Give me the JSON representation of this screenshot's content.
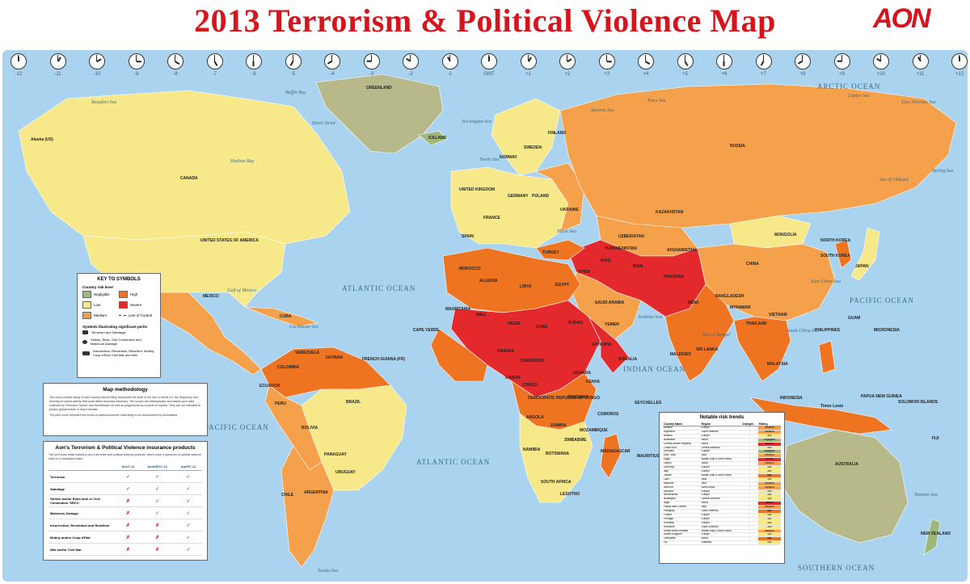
{
  "title": "2013 Terrorism & Political Violence Map",
  "logo": "AON",
  "colors": {
    "negligible": "#9fb97a",
    "low": "#f7e98a",
    "medium": "#f5a04a",
    "high": "#ee7422",
    "severe": "#e3292b",
    "ocean": "#a9d3ee",
    "greenland": "#b7b98a"
  },
  "time_zones": [
    "-12",
    "-11",
    "-10",
    "-9",
    "-8",
    "-7",
    "-6",
    "-5",
    "-4",
    "-3",
    "-2",
    "-1",
    "GMT",
    "+1",
    "+2",
    "+3",
    "+4",
    "+5",
    "+6",
    "+7",
    "+8",
    "+9",
    "+10",
    "+11",
    "+12"
  ],
  "oceans": {
    "arctic": "ARCTIC OCEAN",
    "atlantic_n": "ATLANTIC OCEAN",
    "atlantic_s": "ATLANTIC OCEAN",
    "pacific_w": "PACIFIC OCEAN",
    "pacific_e": "PACIFIC OCEAN",
    "indian": "INDIAN OCEAN",
    "southern": "SOUTHERN OCEAN"
  },
  "seas": {
    "beaufort": "Beaufort Sea",
    "baffin": "Baffin Bay",
    "davis": "Davis Strait",
    "hudson": "Hudson Bay",
    "mexico": "Gulf of Mexico",
    "caribbean": "Caribbean Sea",
    "norwegian": "Norwegian Sea",
    "north": "North Sea",
    "barents": "Barents Sea",
    "kara": "Kara Sea",
    "laptev": "Laptev Sea",
    "east_siberian": "East Siberian Sea",
    "okhotsk": "Sea of Okhotsk",
    "bering": "Bering Sea",
    "black": "Black Sea",
    "arabian": "Arabian Sea",
    "bengal": "Bay of Bengal",
    "east_china": "East China Sea",
    "south_china": "South China Sea",
    "tasman": "Tasman Sea",
    "scotia": "Scotia Sea"
  },
  "countries": {
    "greenland": "GREENLAND",
    "canada": "CANADA",
    "usa": "UNITED STATES OF AMERICA",
    "mexico": "MEXICO",
    "brazil": "BRAZIL",
    "argentina": "ARGENTINA",
    "russia": "RUSSIA",
    "china": "CHINA",
    "india": "INDIA",
    "mongolia": "MONGOLIA",
    "kazakhstan": "KAZAKHSTAN",
    "australia": "AUSTRALIA",
    "saudi": "SAUDI ARABIA",
    "algeria": "ALGERIA",
    "libya": "LIBYA",
    "egypt": "EGYPT",
    "sudan": "SUDAN",
    "mali": "MALI",
    "niger": "NIGER",
    "chad": "CHAD",
    "drc": "DEMOCRATIC REPUBLIC OF CONGO",
    "angola": "ANGOLA",
    "south_africa": "SOUTH AFRICA",
    "madagascar": "MADAGASCAR",
    "indonesia": "INDONESIA",
    "iran": "IRAN",
    "peru": "PERU",
    "bolivia": "BOLIVIA",
    "colombia": "COLOMBIA",
    "venezuela": "VENEZUELA",
    "chile": "CHILE",
    "french_guiana": "FRENCH GUIANA (FR)",
    "japan": "JAPAN",
    "philippines": "PHILIPPINES",
    "micronesia": "MICRONESIA",
    "guam": "GUAM",
    "alaska": "Alaska (US)",
    "iceland": "ICELAND",
    "norway": "NORWAY",
    "sweden": "SWEDEN",
    "finland": "FINLAND",
    "uk": "UNITED KINGDOM",
    "france": "FRANCE",
    "spain": "SPAIN",
    "germany": "GERMANY",
    "poland": "POLAND",
    "ukraine": "UKRAINE",
    "turkey": "TURKEY",
    "pakistan": "PAKISTAN",
    "afghanistan": "AFGHANISTAN",
    "yemen": "YEMEN",
    "somalia": "SOMALIA",
    "ethiopia": "ETHIOPIA",
    "kenya": "KENYA",
    "tanzania": "TANZANIA",
    "zambia": "ZAMBIA",
    "mozambique": "MOZAMBIQUE",
    "namibia": "NAMIBIA",
    "botswana": "BOTSWANA",
    "nigeria": "NIGERIA",
    "mauritania": "MAURITANIA",
    "morocco": "MOROCCO",
    "thailand": "THAILAND",
    "vietnam": "VIETNAM",
    "malaysia": "MALAYSIA",
    "png": "PAPUA NEW GUINEA",
    "new_zealand": "NEW ZEALAND",
    "north_korea": "NORTH KOREA",
    "south_korea": "SOUTH KOREA",
    "myanmar": "MYANMAR",
    "bangladesh": "BANGLADESH",
    "sri_lanka": "SRI LANKA",
    "uzbekistan": "UZBEKISTAN",
    "turkmenistan": "TURKMENISTAN",
    "iraq": "IRAQ",
    "syria": "SYRIA",
    "cape_verde": "CAPE VERDE",
    "cuba": "CUBA",
    "paraguay": "PARAGUAY",
    "uruguay": "URUGUAY",
    "ecuador": "ECUADOR",
    "guyana": "GUYANA",
    "cameroon": "CAMEROON",
    "gabon": "GABON",
    "congo": "CONGO",
    "uganda": "UGANDA",
    "comoros": "COMOROS",
    "maldives": "MALDIVES",
    "seychelles": "SEYCHELLES",
    "mauritius": "MAURITIUS",
    "lesotho": "LESOTHO",
    "zimbabwe": "ZIMBABWE",
    "east_timor": "Timor Leste",
    "solomon": "SOLOMON ISLANDS",
    "fiji": "FIJI"
  },
  "key": {
    "title": "KEY TO SYMBOLS",
    "country_risk_label": "Country risk level",
    "levels": [
      "Negligible",
      "High",
      "Low",
      "Severe",
      "Medium",
      "Line of Control"
    ],
    "symbols_label": "Symbols illustrating significant perils",
    "symbols": [
      "Terrorism and Sabotage",
      "Strikes, Riots, Civil Commotion and Malicious Damage",
      "Insurrection, Revolution, Rebellion, Mutiny, Coup d'Etat, Civil War and War"
    ]
  },
  "methodology": {
    "title": "Map methodology",
    "text1": "The colour-coded rating of each country and territory represents the level of the risk or threat (i.e. the frequency and severity of violent activity that could affect business interests). The scores are retrospective and based upon data collected by Terrorism Tracker and WorldAware as well as judgements by a panel of experts. They are not intended to predict global events or future threats.",
    "text2": "The peril icons represent the forms of political violence most likely to be encountered by businesses."
  },
  "insurance": {
    "title": "Aon's Terrorism & Political Violence insurance products",
    "intro": "The peril icons relate closely to Aon's terrorism and political violence products, which cover a spectrum of political violence risks on a cumulative basis.",
    "columns": [
      "AonT 12",
      "AonSRCC 12",
      "AonPV 12"
    ],
    "rows": [
      {
        "label": "Terrorism",
        "marks": [
          "yes",
          "yes",
          "yes"
        ]
      },
      {
        "label": "Sabotage",
        "marks": [
          "yes",
          "yes",
          "yes"
        ]
      },
      {
        "label": "Strikes and/or Riots and/ or Civil Commotion 'SRCC'",
        "marks": [
          "no",
          "yes",
          "yes"
        ]
      },
      {
        "label": "Malicious Damage",
        "marks": [
          "no",
          "yes",
          "yes"
        ]
      },
      {
        "label": "Insurrection, Revolution and Rebellion",
        "marks": [
          "no",
          "no",
          "yes"
        ]
      },
      {
        "label": "Mutiny and/or Coup d'Etat",
        "marks": [
          "no",
          "no",
          "yes"
        ]
      },
      {
        "label": "War and/or Civil War",
        "marks": [
          "no",
          "no",
          "yes"
        ]
      }
    ]
  },
  "trends": {
    "title": "Notable risk trends",
    "headers": [
      "Country Name",
      "Region",
      "Changes",
      "Rating"
    ],
    "rows": [
      [
        "Albania",
        "Europe",
        "↑",
        "medium"
      ],
      [
        "Argentina",
        "South America",
        "↑",
        "medium"
      ],
      [
        "Belarus",
        "Europe",
        "↓",
        "low"
      ],
      [
        "Botswana",
        "Africa",
        "↓",
        "negligible"
      ],
      [
        "Central African Republic",
        "Africa",
        "↑",
        "severe"
      ],
      [
        "Costa Rica",
        "Central America",
        "↓",
        "low"
      ],
      [
        "Denmark",
        "Europe",
        "↓",
        "negligible"
      ],
      [
        "East Timor",
        "Asia",
        "↓",
        "medium"
      ],
      [
        "Egypt",
        "Middle East & North Africa",
        "↑",
        "severe"
      ],
      [
        "Gabon",
        "Africa",
        "↑",
        "medium"
      ],
      [
        "Germany",
        "Europe",
        "↓",
        "low"
      ],
      [
        "Italy",
        "Europe",
        "↓",
        "low"
      ],
      [
        "Jordan",
        "Middle East & North Africa",
        "↑",
        "high"
      ],
      [
        "Laos",
        "Asia",
        "↓",
        "low"
      ],
      [
        "Maldives",
        "Asia",
        "↑",
        "medium"
      ],
      [
        "Morocco",
        "North Africa",
        "↑",
        "medium"
      ],
      [
        "Moldova",
        "Europe",
        "↓",
        "low"
      ],
      [
        "Netherlands",
        "Europe",
        "↓",
        "low"
      ],
      [
        "Nicaragua",
        "Central America",
        "↓",
        "low"
      ],
      [
        "Niger",
        "Africa",
        "↑",
        "severe"
      ],
      [
        "Papua New Guinea",
        "Asia",
        "↑",
        "medium"
      ],
      [
        "Paraguay",
        "South America",
        "↑",
        "high"
      ],
      [
        "Poland",
        "Europe",
        "↓",
        "low"
      ],
      [
        "Portugal",
        "Europe",
        "↑",
        "low"
      ],
      [
        "Romania",
        "Europe",
        "↓",
        "low"
      ],
      [
        "Suriname",
        "South America",
        "↓",
        "low"
      ],
      [
        "United Arab Emirates",
        "Middle East & North Africa",
        "↑",
        "medium"
      ],
      [
        "United Kingdom",
        "Europe",
        "↓",
        "low"
      ],
      [
        "Zimbabwe",
        "Africa",
        "↓",
        "high"
      ],
      [
        "Fiji",
        "Australia",
        "↓",
        "low"
      ]
    ]
  }
}
